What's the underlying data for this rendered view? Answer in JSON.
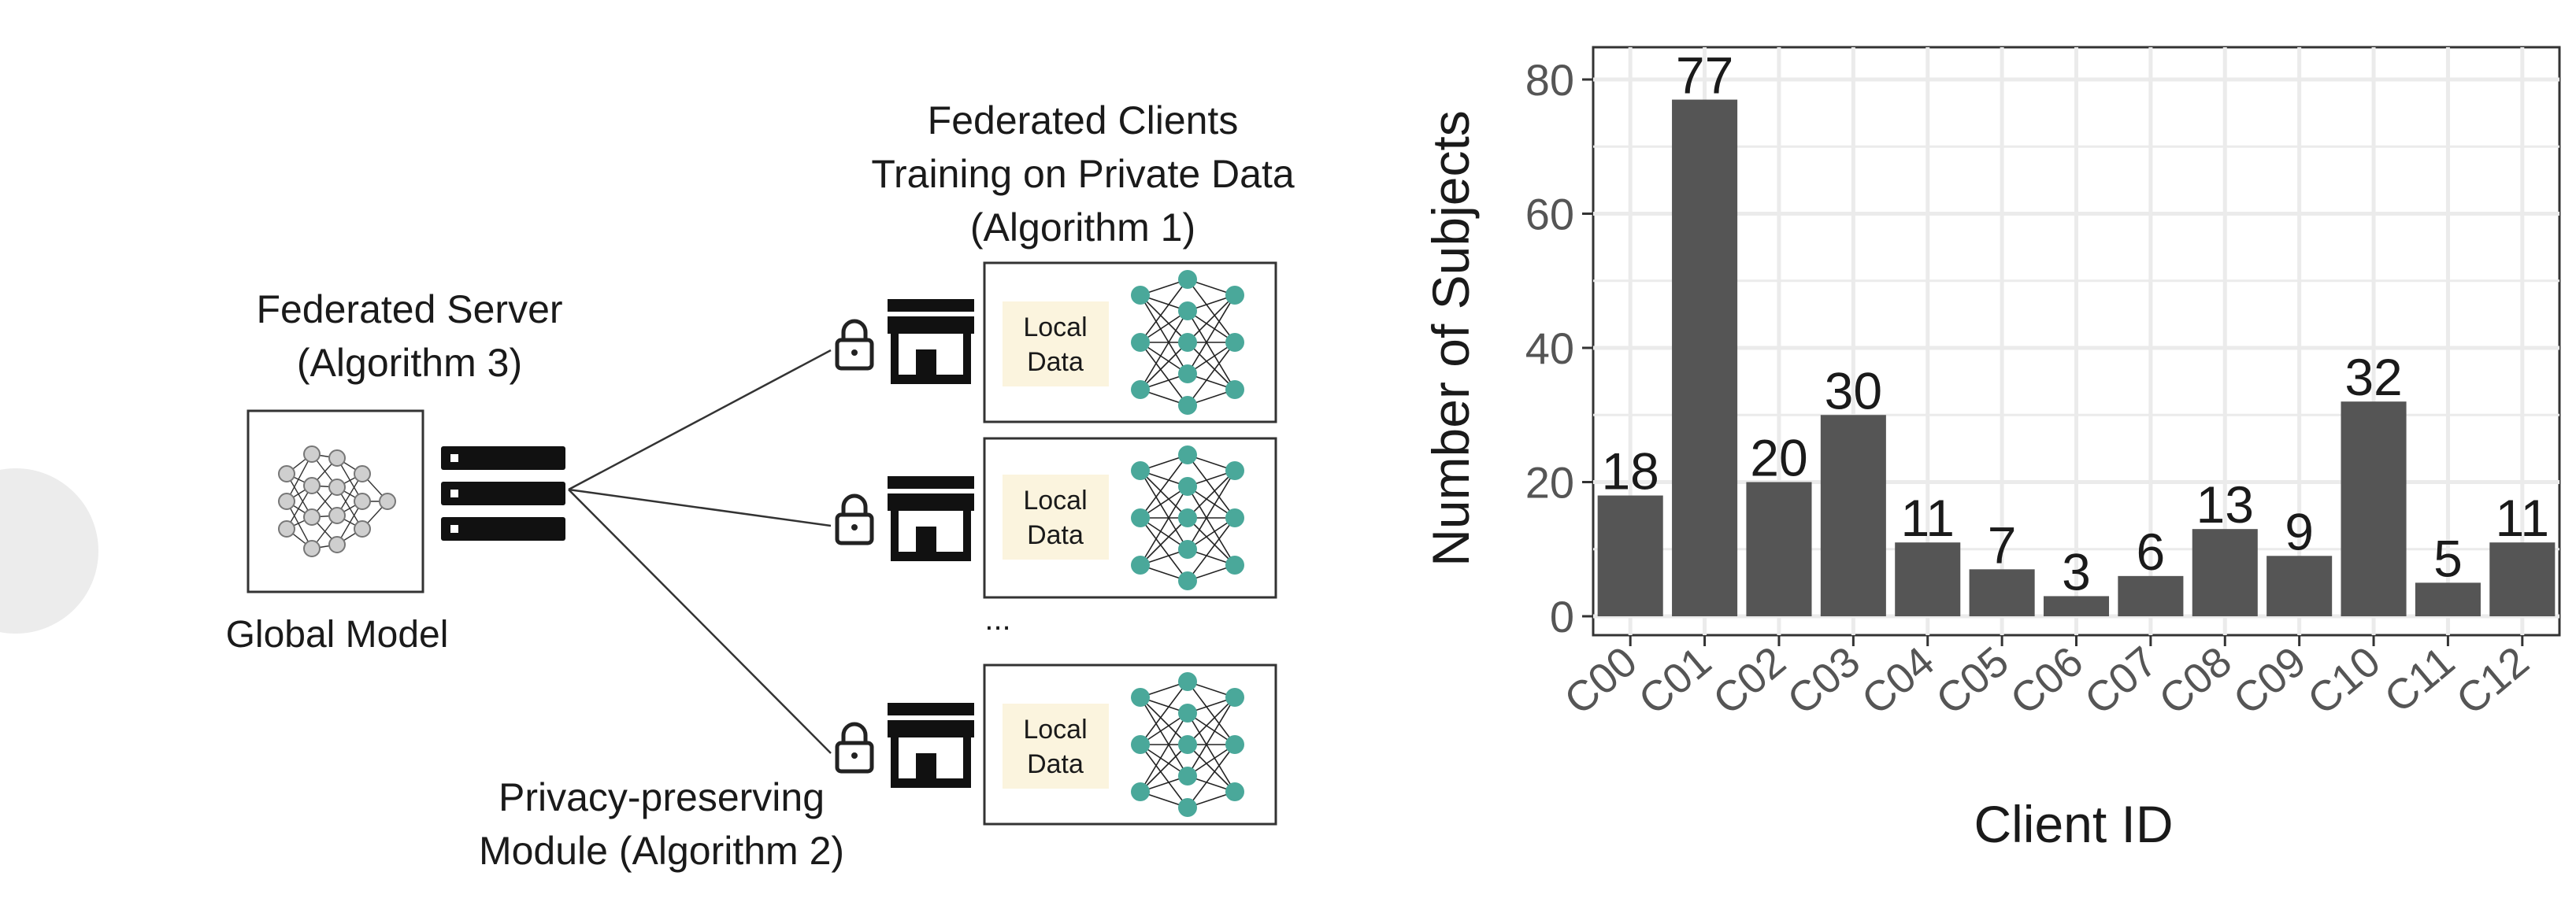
{
  "diagram": {
    "server_title": "Federated Server",
    "server_subtitle": "(Algorithm 3)",
    "global_model_label": "Global Model",
    "clients_title_1": "Federated Clients",
    "clients_title_2": "Training on Private Data",
    "clients_title_3": "(Algorithm 1)",
    "local_data_line1": "Local",
    "local_data_line2": "Data",
    "ellipsis": "...",
    "privacy_line1": "Privacy-preserving",
    "privacy_line2": "Module (Algorithm 2)",
    "colors": {
      "node_teal": "#4aa89a",
      "node_gray": "#c8c8c8",
      "local_data_bg": "#fbf4de",
      "icon_dark": "#111111"
    }
  },
  "chart_data": {
    "type": "bar",
    "categories": [
      "C00",
      "C01",
      "C02",
      "C03",
      "C04",
      "C05",
      "C06",
      "C07",
      "C08",
      "C09",
      "C10",
      "C11",
      "C12"
    ],
    "values": [
      18,
      77,
      20,
      30,
      11,
      7,
      3,
      6,
      13,
      9,
      32,
      5,
      11
    ],
    "data_labels": [
      "18",
      "77",
      "20",
      "30",
      "11",
      "7",
      "3",
      "6",
      "13",
      "9",
      "32",
      "5",
      "11"
    ],
    "xlabel": "Client ID",
    "ylabel": "Number of Subjects",
    "ylim": [
      0,
      85
    ],
    "yticks": [
      0,
      20,
      40,
      60,
      80
    ],
    "grid": true,
    "bar_color": "#555555",
    "panel_color": "#ffffff",
    "grid_color": "#ebebeb"
  }
}
